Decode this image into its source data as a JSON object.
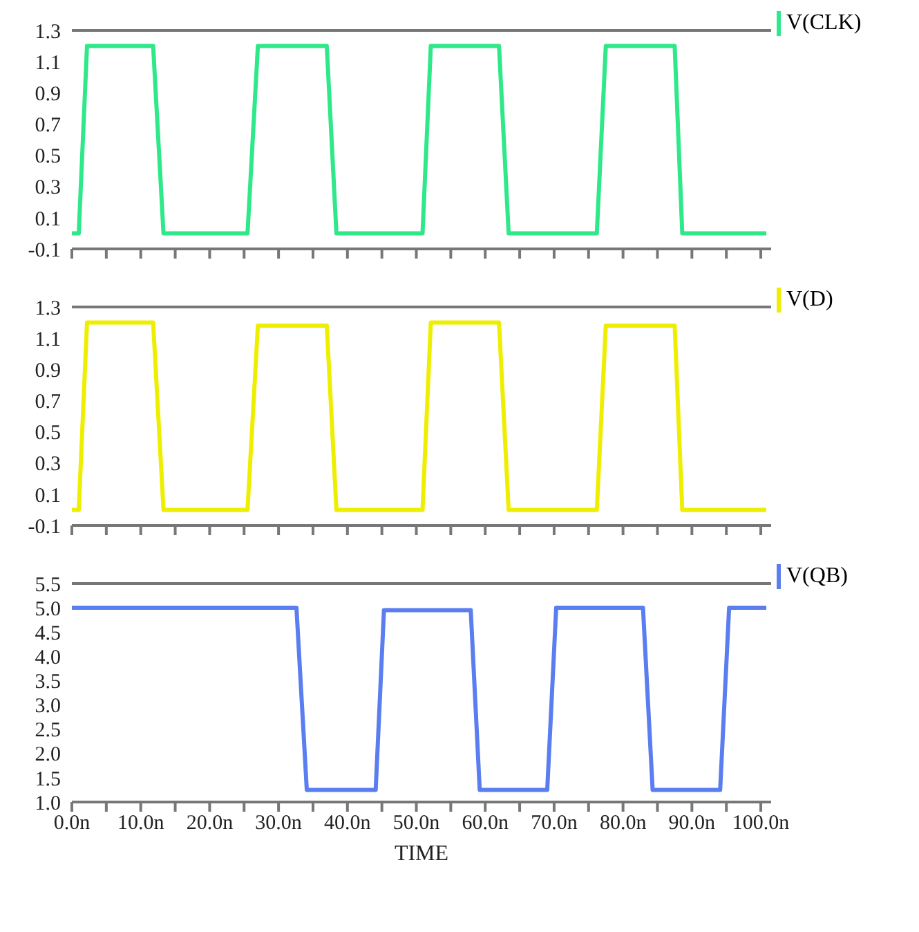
{
  "chart_data": [
    {
      "type": "line",
      "x": [
        0,
        1.0,
        2.2,
        11.8,
        13.3,
        25.5,
        27.0,
        37.0,
        38.4,
        50.9,
        52.1,
        62.0,
        63.4,
        76.2,
        77.5,
        87.5,
        88.6,
        100.8
      ],
      "series": [
        {
          "name": "V(CLK)",
          "color": "#2ee88a",
          "values": [
            0,
            0,
            1.2,
            1.2,
            0,
            0,
            1.2,
            1.2,
            0,
            0,
            1.2,
            1.2,
            0,
            0,
            1.2,
            1.2,
            0,
            0
          ]
        }
      ],
      "xlim": [
        0,
        101.5
      ],
      "ylim": [
        -0.1,
        1.3
      ],
      "yticks": [
        -0.1,
        0.1,
        0.3,
        0.5,
        0.7,
        0.9,
        1.1,
        1.3
      ],
      "xticks": [
        {
          "value": 0,
          "label": null
        },
        {
          "value": 5,
          "label": null
        },
        {
          "value": 10,
          "label": null
        },
        {
          "value": 15,
          "label": null
        },
        {
          "value": 20,
          "label": null
        },
        {
          "value": 25,
          "label": null
        },
        {
          "value": 30,
          "label": null
        },
        {
          "value": 35,
          "label": null
        },
        {
          "value": 40,
          "label": null
        },
        {
          "value": 45,
          "label": null
        },
        {
          "value": 50,
          "label": null
        },
        {
          "value": 55,
          "label": null
        },
        {
          "value": 60,
          "label": null
        },
        {
          "value": 65,
          "label": null
        },
        {
          "value": 70,
          "label": null
        },
        {
          "value": 75,
          "label": null
        },
        {
          "value": 80,
          "label": null
        },
        {
          "value": 85,
          "label": null
        },
        {
          "value": 90,
          "label": null
        },
        {
          "value": 95,
          "label": null
        },
        {
          "value": 100,
          "label": null
        }
      ],
      "tick_labels": "y",
      "grid": false,
      "legend": "top right",
      "marker": "none",
      "line_style": "solid"
    },
    {
      "type": "line",
      "x": [
        0,
        1.0,
        2.2,
        11.8,
        13.3,
        25.5,
        27.0,
        37.0,
        38.4,
        50.9,
        52.1,
        62.0,
        63.4,
        76.2,
        77.5,
        87.5,
        88.6,
        100.8
      ],
      "series": [
        {
          "name": "V(D)",
          "color": "#eeee00",
          "values": [
            0,
            0,
            1.2,
            1.2,
            0,
            0,
            1.18,
            1.18,
            0,
            0,
            1.2,
            1.2,
            0,
            0,
            1.18,
            1.18,
            0,
            0
          ]
        }
      ],
      "xlim": [
        0,
        101.5
      ],
      "ylim": [
        -0.1,
        1.3
      ],
      "yticks": [
        -0.1,
        0.1,
        0.3,
        0.5,
        0.7,
        0.9,
        1.1,
        1.3
      ],
      "xticks": [
        {
          "value": 0,
          "label": null
        },
        {
          "value": 5,
          "label": null
        },
        {
          "value": 10,
          "label": null
        },
        {
          "value": 15,
          "label": null
        },
        {
          "value": 20,
          "label": null
        },
        {
          "value": 25,
          "label": null
        },
        {
          "value": 30,
          "label": null
        },
        {
          "value": 35,
          "label": null
        },
        {
          "value": 40,
          "label": null
        },
        {
          "value": 45,
          "label": null
        },
        {
          "value": 50,
          "label": null
        },
        {
          "value": 55,
          "label": null
        },
        {
          "value": 60,
          "label": null
        },
        {
          "value": 65,
          "label": null
        },
        {
          "value": 70,
          "label": null
        },
        {
          "value": 75,
          "label": null
        },
        {
          "value": 80,
          "label": null
        },
        {
          "value": 85,
          "label": null
        },
        {
          "value": 90,
          "label": null
        },
        {
          "value": 95,
          "label": null
        },
        {
          "value": 100,
          "label": null
        }
      ],
      "tick_labels": "y",
      "grid": false,
      "legend": "top right",
      "marker": "none",
      "line_style": "solid"
    },
    {
      "type": "line",
      "xlabel": "TIME",
      "x": [
        0,
        32.6,
        34.1,
        44.1,
        45.3,
        57.9,
        59.2,
        69.0,
        70.3,
        82.9,
        84.3,
        94.1,
        95.4,
        100.8
      ],
      "series": [
        {
          "name": "V(QB)",
          "color": "#5a7ef0",
          "values": [
            5,
            5,
            1.25,
            1.25,
            4.95,
            4.95,
            1.25,
            1.25,
            5,
            5,
            1.25,
            1.25,
            5,
            5
          ]
        }
      ],
      "xlim": [
        0,
        101.5
      ],
      "ylim": [
        1,
        5.5
      ],
      "yticks": [
        {
          "value": 1,
          "label": "1.0"
        },
        1.5,
        {
          "value": 2,
          "label": "2.0"
        },
        2.5,
        {
          "value": 3,
          "label": "3.0"
        },
        3.5,
        {
          "value": 4,
          "label": "4.0"
        },
        4.5,
        {
          "value": 5,
          "label": "5.0"
        },
        5.5
      ],
      "xticks": [
        {
          "value": 0,
          "label": "0.0n"
        },
        {
          "value": 5,
          "label": null
        },
        {
          "value": 10,
          "label": "10.0n"
        },
        {
          "value": 15,
          "label": null
        },
        {
          "value": 20,
          "label": "20.0n"
        },
        {
          "value": 25,
          "label": null
        },
        {
          "value": 30,
          "label": "30.0n"
        },
        {
          "value": 35,
          "label": null
        },
        {
          "value": 40,
          "label": "40.0n"
        },
        {
          "value": 45,
          "label": null
        },
        {
          "value": 50,
          "label": "50.0n"
        },
        {
          "value": 55,
          "label": null
        },
        {
          "value": 60,
          "label": "60.0n"
        },
        {
          "value": 65,
          "label": null
        },
        {
          "value": 70,
          "label": "70.0n"
        },
        {
          "value": 75,
          "label": null
        },
        {
          "value": 80,
          "label": "80.0n"
        },
        {
          "value": 85,
          "label": null
        },
        {
          "value": 90,
          "label": "90.0n"
        },
        {
          "value": 95,
          "label": null
        },
        {
          "value": 100,
          "label": "100.0n"
        }
      ],
      "grid": false,
      "legend": "top right",
      "marker": "none",
      "line_style": "solid"
    }
  ]
}
